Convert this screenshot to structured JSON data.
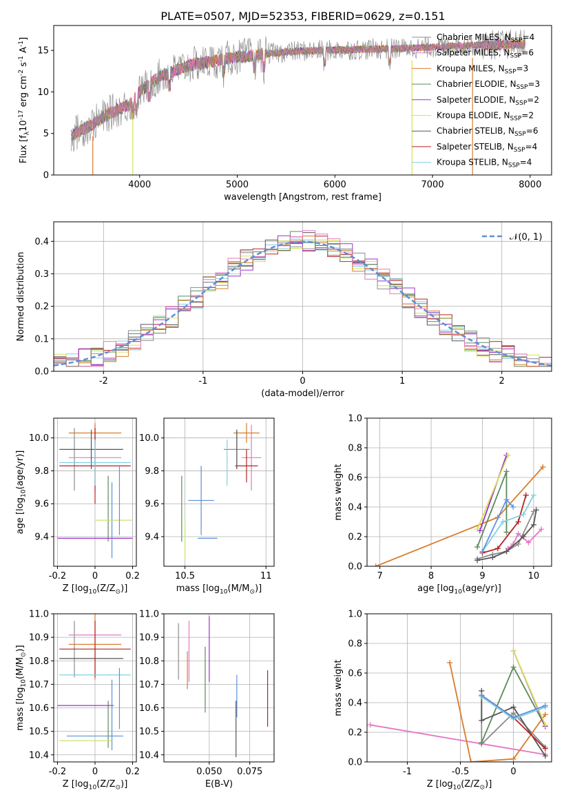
{
  "figure": {
    "title": "PLATE=0507, MJD=52353, FIBERID=0629, z=0.151"
  },
  "models": [
    {
      "label": "Chabrier MILES, N$_{SSP}$=4",
      "lib": "Chabrier MILES, N",
      "n": "=4",
      "color": "#8c8c8c"
    },
    {
      "label": "Salpeter MILES, N$_{SSP}$=6",
      "lib": "Salpeter MILES, N",
      "n": "=6",
      "color": "#e377c2"
    },
    {
      "label": "Kroupa MILES, N$_{SSP}$=3",
      "lib": "Kroupa MILES, N",
      "n": "=3",
      "color": "#d97b2a"
    },
    {
      "label": "Chabrier ELODIE, N$_{SSP}$=3",
      "lib": "Chabrier ELODIE, N",
      "n": "=3",
      "color": "#5a8a5a"
    },
    {
      "label": "Salpeter ELODIE, N$_{SSP}$=2",
      "lib": "Salpeter ELODIE, N",
      "n": "=2",
      "color": "#9b30c8"
    },
    {
      "label": "Kroupa ELODIE, N$_{SSP}$=2",
      "lib": "Kroupa ELODIE, N",
      "n": "=2",
      "color": "#d4e157"
    },
    {
      "label": "Chabrier STELIB, N$_{SSP}$=6",
      "lib": "Chabrier STELIB, N",
      "n": "=6",
      "color": "#555555"
    },
    {
      "label": "Salpeter STELIB, N$_{SSP}$=4",
      "lib": "Salpeter STELIB, N",
      "n": "=4",
      "color": "#b22222"
    },
    {
      "label": "Kroupa STELIB, N$_{SSP}$=4",
      "lib": "Kroupa STELIB, N",
      "n": "=4",
      "color": "#80d0e0"
    }
  ],
  "chart_data": [
    {
      "id": "spectrum",
      "type": "line",
      "xlabel": "wavelength [Angstrom, rest frame]",
      "ylabel": "Flux [f$_\\lambda$10$^{-17}$ erg cm$^{-2}$ s$^{-1}$ A$^{-1}$]",
      "xlim": [
        3120,
        8220
      ],
      "ylim": [
        0,
        18
      ],
      "xticks": [
        4000,
        5000,
        6000,
        7000,
        8000
      ],
      "yticks": [
        0,
        5,
        10,
        15
      ],
      "data_range": [
        3300,
        7950
      ],
      "continuum": {
        "x": [
          3300,
          3500,
          3700,
          3900,
          4000,
          4200,
          4500,
          5000,
          5300,
          5600,
          5900,
          6200,
          6600,
          7000,
          7400,
          7950
        ],
        "y": [
          4.8,
          6.0,
          7.5,
          8.5,
          10.0,
          11.8,
          13.2,
          14.2,
          14.6,
          14.9,
          15.0,
          15.1,
          15.2,
          15.4,
          15.6,
          15.8
        ]
      },
      "dropouts": [
        {
          "x": 3520,
          "y": 0.0
        },
        {
          "x": 3930,
          "y": 0.0
        },
        {
          "x": 6790,
          "y": 0.0
        },
        {
          "x": 7410,
          "y": 0.0
        }
      ],
      "legend": "top-right"
    },
    {
      "id": "residuals",
      "type": "histogram",
      "xlabel": "(data-model)/error",
      "ylabel": "Normed distribution",
      "xlim": [
        -2.5,
        2.5
      ],
      "ylim": [
        0,
        0.46
      ],
      "xticks": [
        -2,
        -1,
        0,
        1,
        2
      ],
      "yticks": [
        0.0,
        0.1,
        0.2,
        0.3,
        0.4
      ],
      "bin_width": 0.125,
      "gaussian_label": "$\\mathcal{N}(0,1)$",
      "gaussian_legend": "𝒩(0, 1)",
      "legend": "top-right"
    },
    {
      "id": "age-Z",
      "type": "errorbar",
      "xlabel": "Z [log$_{10}$(Z/Z$_\\odot$)]",
      "ylabel": "age  [log$_{10}$(age/yr)]",
      "xlim": [
        -0.22,
        0.22
      ],
      "ylim": [
        9.22,
        10.12
      ],
      "xticks": [
        -0.2,
        0.0,
        0.2
      ],
      "yticks": [
        9.4,
        9.6,
        9.8,
        10.0
      ],
      "points": [
        {
          "x": -0.11,
          "xerr": 0.0,
          "y": 9.87,
          "yerr": 0.19
        },
        {
          "x": 0.0,
          "xerr": 0.14,
          "y": 9.88,
          "yerr": 0.2
        },
        {
          "x": 0.0,
          "xerr": 0.14,
          "y": 10.03,
          "yerr": 0.06
        },
        {
          "x": 0.07,
          "xerr": 0.0,
          "y": 9.57,
          "yerr": 0.2
        },
        {
          "x": 0.0,
          "xerr": 0.2,
          "y": 9.39,
          "yerr": 0.0
        },
        {
          "x": 0.09,
          "xerr": 0.0,
          "y": 9.5,
          "yerr": 0.23
        },
        {
          "x": -0.02,
          "xerr": 0.17,
          "y": 9.93,
          "yerr": 0.12
        },
        {
          "x": 0.0,
          "xerr": 0.19,
          "y": 9.83,
          "yerr": 0.23
        },
        {
          "x": 0.0,
          "xerr": 0.19,
          "y": 9.85,
          "yerr": 0.14
        },
        {
          "x": 0.1,
          "xerr": 0.1,
          "y": 9.5,
          "yerr": 0.0
        },
        {
          "x": 0.13,
          "xerr": 0.0,
          "y": 9.62,
          "yerr": 0.21
        }
      ]
    },
    {
      "id": "age-mass",
      "type": "errorbar",
      "xlabel": "mass [log$_{10}$(M/M$_\\odot$)]",
      "ylabel": "",
      "xlim": [
        10.37,
        11.05
      ],
      "ylim": [
        9.22,
        10.12
      ],
      "xticks": [
        10.5,
        11.0
      ],
      "yticks": [
        9.4,
        9.6,
        9.8,
        10.0
      ],
      "points": [
        {
          "x": 10.82,
          "xerr": 0.08,
          "y": 9.93,
          "yerr": 0.12
        },
        {
          "x": 10.91,
          "xerr": 0.06,
          "y": 9.88,
          "yerr": 0.2
        },
        {
          "x": 10.88,
          "xerr": 0.08,
          "y": 10.03,
          "yerr": 0.06
        },
        {
          "x": 10.48,
          "xerr": 0.0,
          "y": 9.57,
          "yerr": 0.2
        },
        {
          "x": 10.46,
          "xerr": 0.0,
          "y": 9.39,
          "yerr": 0.0
        },
        {
          "x": 10.64,
          "xerr": 0.06,
          "y": 9.39,
          "yerr": 0.0
        },
        {
          "x": 10.82,
          "xerr": 0.0,
          "y": 9.93,
          "yerr": 0.12
        },
        {
          "x": 10.88,
          "xerr": 0.07,
          "y": 9.83,
          "yerr": 0.1
        },
        {
          "x": 10.76,
          "xerr": 0.0,
          "y": 9.85,
          "yerr": 0.14
        },
        {
          "x": 10.5,
          "xerr": 0.0,
          "y": 9.39,
          "yerr": 0.13
        },
        {
          "x": 10.6,
          "xerr": 0.08,
          "y": 9.62,
          "yerr": 0.21
        }
      ]
    },
    {
      "id": "weight-age",
      "type": "line",
      "xlabel": "age  [log$_{10}$(age/yr)]",
      "ylabel": "mass weight",
      "xlim": [
        6.75,
        10.35
      ],
      "ylim": [
        0,
        1
      ],
      "xticks": [
        7,
        8,
        9,
        10
      ],
      "yticks": [
        0.0,
        0.2,
        0.4,
        0.6,
        0.8,
        1.0
      ],
      "series": [
        {
          "model": 0,
          "x": [
            8.9,
            9.2,
            9.47,
            9.7,
            10.0
          ],
          "y": [
            0.05,
            0.08,
            0.1,
            0.15,
            0.37
          ]
        },
        {
          "model": 1,
          "x": [
            9.5,
            9.6,
            9.7,
            9.9,
            10.15
          ],
          "y": [
            0.12,
            0.15,
            0.22,
            0.16,
            0.25
          ]
        },
        {
          "model": 2,
          "x": [
            6.92,
            9.3,
            10.18
          ],
          "y": [
            0.0,
            0.33,
            0.67
          ]
        },
        {
          "model": 3,
          "x": [
            8.9,
            9.47,
            9.47
          ],
          "y": [
            0.13,
            0.64,
            0.23
          ]
        },
        {
          "model": 4,
          "x": [
            8.95,
            9.47
          ],
          "y": [
            0.24,
            0.75
          ]
        },
        {
          "model": 5,
          "x": [
            8.9,
            9.5
          ],
          "y": [
            0.25,
            0.75
          ]
        },
        {
          "model": 6,
          "x": [
            8.9,
            9.2,
            9.47,
            9.8,
            10.0,
            10.05
          ],
          "y": [
            0.04,
            0.06,
            0.1,
            0.2,
            0.28,
            0.38
          ]
        },
        {
          "model": 7,
          "x": [
            9.0,
            9.3,
            9.7,
            9.85
          ],
          "y": [
            0.09,
            0.12,
            0.3,
            0.48
          ]
        },
        {
          "model": 8,
          "x": [
            9.0,
            9.4,
            9.8,
            10.0
          ],
          "y": [
            0.1,
            0.3,
            0.35,
            0.48
          ]
        },
        {
          "model": 0,
          "x": [
            9.0,
            9.47,
            9.6
          ],
          "y": [
            0.1,
            0.45,
            0.4
          ],
          "accent": "#6090e0"
        }
      ]
    },
    {
      "id": "mass-Z",
      "type": "errorbar",
      "xlabel": "Z [log$_{10}$(Z/Z$_\\odot$)]",
      "ylabel": "mass [log$_{10}$(M/M$_\\odot$)]",
      "xlim": [
        -0.22,
        0.22
      ],
      "ylim": [
        10.37,
        11.0
      ],
      "xticks": [
        -0.2,
        0.0,
        0.2
      ],
      "yticks": [
        10.4,
        10.5,
        10.6,
        10.7,
        10.8,
        10.9,
        11.0
      ],
      "points": [
        {
          "x": -0.11,
          "xerr": 0.0,
          "y": 10.85,
          "yerr": 0.12
        },
        {
          "x": 0.0,
          "xerr": 0.14,
          "y": 10.91,
          "yerr": 0.0
        },
        {
          "x": 0.0,
          "xerr": 0.14,
          "y": 10.87,
          "yerr": 0.15
        },
        {
          "x": 0.07,
          "xerr": 0.0,
          "y": 10.53,
          "yerr": 0.1
        },
        {
          "x": -0.05,
          "xerr": 0.15,
          "y": 10.61,
          "yerr": 0.0
        },
        {
          "x": 0.09,
          "xerr": 0.0,
          "y": 10.57,
          "yerr": 0.15
        },
        {
          "x": -0.02,
          "xerr": 0.17,
          "y": 10.81,
          "yerr": 0.0
        },
        {
          "x": 0.0,
          "xerr": 0.19,
          "y": 10.85,
          "yerr": 0.12
        },
        {
          "x": 0.0,
          "xerr": 0.19,
          "y": 10.74,
          "yerr": 0.0
        },
        {
          "x": -0.05,
          "xerr": 0.14,
          "y": 10.46,
          "yerr": 0.0
        },
        {
          "x": 0.0,
          "xerr": 0.15,
          "y": 10.48,
          "yerr": 0.0
        },
        {
          "x": 0.13,
          "xerr": 0.0,
          "y": 10.64,
          "yerr": 0.13
        }
      ]
    },
    {
      "id": "mass-ebv",
      "type": "errorbar",
      "xlabel": "E(B-V)",
      "ylabel": "",
      "xlim": [
        0.022,
        0.09
      ],
      "ylim": [
        10.37,
        11.0
      ],
      "xticks": [
        0.05,
        0.075
      ],
      "xticklabels": [
        "0.050",
        "0.075"
      ],
      "yticks": [
        10.4,
        10.5,
        10.6,
        10.7,
        10.8,
        10.9,
        11.0
      ],
      "points": [
        {
          "x": 0.031,
          "xerr": 0.0,
          "y": 10.84,
          "yerr": 0.12
        },
        {
          "x": 0.0375,
          "xerr": 0.0,
          "y": 10.84,
          "yerr": 0.13
        },
        {
          "x": 0.0365,
          "xerr": 0.0,
          "y": 10.76,
          "yerr": 0.08
        },
        {
          "x": 0.0475,
          "xerr": 0.0,
          "y": 10.72,
          "yerr": 0.14
        },
        {
          "x": 0.05,
          "xerr": 0.0,
          "y": 10.85,
          "yerr": 0.14
        },
        {
          "x": 0.067,
          "xerr": 0.0,
          "y": 10.65,
          "yerr": 0.09
        },
        {
          "x": 0.0665,
          "xerr": 0.0,
          "y": 10.51,
          "yerr": 0.12
        },
        {
          "x": 0.086,
          "xerr": 0.0,
          "y": 10.64,
          "yerr": 0.12
        }
      ]
    },
    {
      "id": "weight-Z",
      "type": "line",
      "xlabel": "Z [log$_{10}$(Z/Z$_\\odot$)]",
      "ylabel": "mass weight",
      "xlim": [
        -1.38,
        0.36
      ],
      "ylim": [
        0,
        1
      ],
      "xticks": [
        -1.0,
        -0.5,
        0.0
      ],
      "yticks": [
        0.0,
        0.2,
        0.4,
        0.6,
        0.8,
        1.0
      ],
      "series": [
        {
          "model": 0,
          "x": [
            -0.3,
            -0.3,
            0.0,
            0.3
          ],
          "y": [
            0.45,
            0.12,
            0.33,
            0.1
          ]
        },
        {
          "model": 1,
          "x": [
            -1.35,
            0.3
          ],
          "y": [
            0.25,
            0.05
          ]
        },
        {
          "model": 2,
          "x": [
            -0.6,
            -0.4,
            0.0,
            0.3
          ],
          "y": [
            0.67,
            0.0,
            0.02,
            0.32
          ]
        },
        {
          "model": 3,
          "x": [
            -0.3,
            0.0,
            0.3
          ],
          "y": [
            0.13,
            0.64,
            0.24
          ]
        },
        {
          "model": 4,
          "x": [
            0.0,
            0.3
          ],
          "y": [
            0.75,
            0.24
          ]
        },
        {
          "model": 5,
          "x": [
            0.0,
            0.3
          ],
          "y": [
            0.75,
            0.25
          ]
        },
        {
          "model": 6,
          "x": [
            -0.3,
            -0.3,
            0.0,
            0.3
          ],
          "y": [
            0.48,
            0.28,
            0.37,
            0.04
          ]
        },
        {
          "model": 7,
          "x": [
            -0.3,
            0.0,
            0.3
          ],
          "y": [
            0.45,
            0.3,
            0.09
          ]
        },
        {
          "model": 8,
          "x": [
            -0.3,
            0.0,
            0.3
          ],
          "y": [
            0.44,
            0.29,
            0.37
          ]
        },
        {
          "model": 0,
          "x": [
            -0.3,
            0.0,
            0.3
          ],
          "y": [
            0.45,
            0.3,
            0.38
          ],
          "accent": "#6090e0"
        }
      ]
    }
  ]
}
